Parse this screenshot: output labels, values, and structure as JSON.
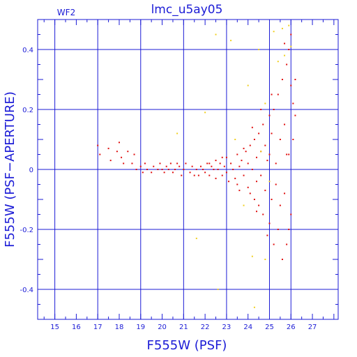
{
  "chart_data": {
    "type": "scatter",
    "title": "lmc_u5ay05",
    "panel_label": "WF2",
    "xlabel": "F555W (PSF)",
    "ylabel": "F555W (PSF−APERTURE)",
    "xlim": [
      14.2,
      28.2
    ],
    "ylim": [
      -0.5,
      0.5
    ],
    "x_ticks": [
      15,
      16,
      17,
      18,
      19,
      20,
      21,
      22,
      23,
      24,
      25,
      26,
      27
    ],
    "x_tick_labels": [
      "15",
      "16",
      "17",
      "18",
      "19",
      "20",
      "21",
      "22",
      "23",
      "24",
      "25",
      "26",
      "27"
    ],
    "y_ticks": [
      -0.4,
      -0.2,
      0,
      0.2,
      0.4
    ],
    "y_tick_labels": [
      "-0.4",
      "-0.2",
      "0",
      "0.2",
      "0.4"
    ],
    "x_gridlines": [
      15,
      17,
      19,
      21,
      23,
      25,
      26
    ],
    "y_gridlines": [
      -0.4,
      -0.2,
      0,
      0.2,
      0.4
    ],
    "grid": true,
    "colors": {
      "axis": "#1b1bd6",
      "series_main": "#e01010",
      "series_rejected": "#f0d020"
    },
    "series": [
      {
        "color": "#e01010",
        "points": [
          [
            17.0,
            0.08
          ],
          [
            17.1,
            0.05
          ],
          [
            17.5,
            0.07
          ],
          [
            17.6,
            0.03
          ],
          [
            17.9,
            0.06
          ],
          [
            18.0,
            0.09
          ],
          [
            18.1,
            0.04
          ],
          [
            18.2,
            0.02
          ],
          [
            18.4,
            0.06
          ],
          [
            18.6,
            0.02
          ],
          [
            18.7,
            0.05
          ],
          [
            18.8,
            0.0
          ],
          [
            19.0,
            0.01
          ],
          [
            19.1,
            -0.01
          ],
          [
            19.2,
            0.02
          ],
          [
            19.3,
            0.0
          ],
          [
            19.5,
            -0.01
          ],
          [
            19.6,
            0.01
          ],
          [
            19.8,
            0.0
          ],
          [
            19.9,
            0.02
          ],
          [
            20.1,
            -0.01
          ],
          [
            20.2,
            0.01
          ],
          [
            20.3,
            0.0
          ],
          [
            20.4,
            0.02
          ],
          [
            20.5,
            -0.01
          ],
          [
            20.6,
            0.0
          ],
          [
            20.8,
            0.01
          ],
          [
            20.9,
            -0.02
          ],
          [
            21.0,
            0.0
          ],
          [
            21.1,
            0.02
          ],
          [
            21.3,
            -0.01
          ],
          [
            21.4,
            0.01
          ],
          [
            21.6,
            0.0
          ],
          [
            21.7,
            -0.02
          ],
          [
            21.8,
            0.01
          ],
          [
            21.9,
            0.0
          ],
          [
            22.0,
            -0.01
          ],
          [
            22.1,
            0.02
          ],
          [
            22.2,
            -0.02
          ],
          [
            22.3,
            0.01
          ],
          [
            22.4,
            0.0
          ],
          [
            22.5,
            0.03
          ],
          [
            22.5,
            -0.03
          ],
          [
            22.6,
            0.0
          ],
          [
            22.7,
            0.02
          ],
          [
            22.8,
            -0.02
          ],
          [
            22.9,
            0.01
          ],
          [
            23.0,
            -0.01
          ],
          [
            23.0,
            0.04
          ],
          [
            23.1,
            -0.04
          ],
          [
            23.2,
            0.02
          ],
          [
            23.3,
            0.0
          ],
          [
            23.4,
            -0.03
          ],
          [
            23.5,
            0.05
          ],
          [
            23.5,
            -0.05
          ],
          [
            23.6,
            0.01
          ],
          [
            23.7,
            0.03
          ],
          [
            23.8,
            -0.02
          ],
          [
            23.9,
            0.06
          ],
          [
            24.0,
            -0.06
          ],
          [
            24.0,
            0.02
          ],
          [
            24.1,
            0.08
          ],
          [
            24.1,
            -0.08
          ],
          [
            24.2,
            0.0
          ],
          [
            24.3,
            0.1
          ],
          [
            24.3,
            -0.1
          ],
          [
            24.4,
            0.04
          ],
          [
            24.4,
            -0.04
          ],
          [
            24.5,
            0.12
          ],
          [
            24.5,
            -0.12
          ],
          [
            24.6,
            0.06
          ],
          [
            24.6,
            -0.02
          ],
          [
            24.7,
            0.15
          ],
          [
            24.7,
            -0.15
          ],
          [
            24.8,
            0.08
          ],
          [
            24.8,
            -0.07
          ],
          [
            24.9,
            0.03
          ],
          [
            25.0,
            0.18
          ],
          [
            25.0,
            -0.18
          ],
          [
            25.0,
            0.05
          ],
          [
            25.1,
            -0.1
          ],
          [
            25.1,
            0.12
          ],
          [
            25.2,
            -0.25
          ],
          [
            25.2,
            0.2
          ],
          [
            25.3,
            0.02
          ],
          [
            25.3,
            -0.05
          ],
          [
            25.4,
            0.25
          ],
          [
            25.4,
            -0.2
          ],
          [
            25.5,
            0.1
          ],
          [
            25.5,
            -0.12
          ],
          [
            25.6,
            0.3
          ],
          [
            25.6,
            -0.3
          ],
          [
            25.7,
            0.15
          ],
          [
            25.7,
            -0.08
          ],
          [
            25.8,
            0.35
          ],
          [
            25.8,
            -0.25
          ],
          [
            25.9,
            0.4
          ],
          [
            25.9,
            0.05
          ],
          [
            26.0,
            0.28
          ],
          [
            26.0,
            -0.15
          ],
          [
            26.0,
            0.45
          ],
          [
            26.1,
            0.1
          ],
          [
            26.1,
            0.22
          ],
          [
            26.2,
            0.18
          ],
          [
            26.2,
            0.3
          ],
          [
            25.9,
            -0.2
          ],
          [
            25.7,
            0.42
          ],
          [
            25.8,
            0.05
          ],
          [
            24.2,
            0.14
          ],
          [
            24.6,
            0.2
          ],
          [
            24.9,
            -0.22
          ],
          [
            25.1,
            0.25
          ],
          [
            24.4,
            -0.14
          ],
          [
            23.8,
            0.07
          ],
          [
            23.6,
            -0.07
          ],
          [
            22.8,
            0.04
          ],
          [
            22.2,
            0.02
          ],
          [
            21.5,
            -0.02
          ],
          [
            20.7,
            0.02
          ],
          [
            20.0,
            0.0
          ]
        ]
      },
      {
        "color": "#f0d020",
        "points": [
          [
            20.7,
            0.12
          ],
          [
            22.0,
            0.19
          ],
          [
            22.5,
            0.45
          ],
          [
            23.2,
            0.43
          ],
          [
            23.4,
            0.1
          ],
          [
            24.0,
            0.28
          ],
          [
            24.2,
            -0.29
          ],
          [
            24.5,
            0.4
          ],
          [
            24.8,
            -0.3
          ],
          [
            24.8,
            0.22
          ],
          [
            25.0,
            -0.04
          ],
          [
            25.2,
            0.46
          ],
          [
            25.6,
            0.47
          ],
          [
            25.9,
            0.48
          ],
          [
            26.0,
            0.41
          ],
          [
            24.3,
            -0.46
          ],
          [
            23.8,
            -0.12
          ],
          [
            22.6,
            -0.4
          ],
          [
            21.6,
            -0.23
          ],
          [
            24.6,
            0.06
          ],
          [
            25.4,
            0.36
          ],
          [
            25.7,
            0.38
          ]
        ]
      }
    ]
  }
}
